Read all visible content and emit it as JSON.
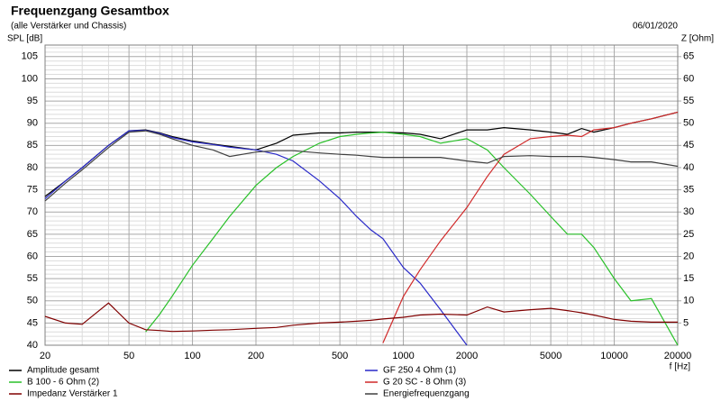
{
  "chart_data": {
    "type": "line",
    "title": "Frequenzgang Gesamtbox",
    "subtitle": "(alle Verstärker und Chassis)",
    "date": "06/01/2020",
    "ylabel": "SPL [dB]",
    "y2label": "Z [Ohm]",
    "xlabel": "f [Hz]",
    "xscale": "log",
    "grid": true,
    "legend": "bottom",
    "xlim": [
      20,
      20000
    ],
    "xticks": [
      20,
      50,
      100,
      200,
      500,
      1000,
      2000,
      5000,
      10000,
      20000
    ],
    "xminorticks": [
      30,
      40,
      60,
      70,
      80,
      90,
      300,
      400,
      600,
      700,
      800,
      900,
      3000,
      4000,
      6000,
      7000,
      8000,
      9000
    ],
    "ylim": [
      40,
      107.6
    ],
    "yticks": [
      40,
      45,
      50,
      55,
      60,
      65,
      70,
      75,
      80,
      85,
      90,
      95,
      100,
      105
    ],
    "yminorticks": [
      41,
      42,
      43,
      44,
      46,
      47,
      48,
      49,
      51,
      52,
      53,
      54,
      56,
      57,
      58,
      59,
      61,
      62,
      63,
      64,
      66,
      67,
      68,
      69,
      71,
      72,
      73,
      74,
      76,
      77,
      78,
      79,
      81,
      82,
      83,
      84,
      86,
      87,
      88,
      89,
      91,
      92,
      93,
      94,
      96,
      97,
      98,
      99,
      101,
      102,
      103,
      104,
      106,
      107
    ],
    "y2lim": [
      0,
      67.6
    ],
    "y2ticks": [
      5,
      10,
      15,
      20,
      25,
      30,
      35,
      40,
      45,
      50,
      55,
      60,
      65
    ],
    "x": [
      20,
      25,
      30,
      40,
      50,
      60,
      70,
      80,
      100,
      125,
      150,
      200,
      250,
      300,
      400,
      500,
      600,
      700,
      800,
      1000,
      1200,
      1500,
      2000,
      2500,
      3000,
      4000,
      5000,
      6000,
      7000,
      8000,
      10000,
      12000,
      15000,
      20000
    ],
    "series": [
      {
        "name": "Amplitude gesamt",
        "color": "#000000",
        "values": [
          73.5,
          77,
          80,
          85,
          88.3,
          88.5,
          87.8,
          87,
          86,
          85.3,
          84.8,
          84,
          85.5,
          87.3,
          87.8,
          87.8,
          88,
          88,
          88,
          87.8,
          87.5,
          86.5,
          88.5,
          88.5,
          89,
          88.5,
          88,
          87.5,
          88.8,
          88,
          89,
          90,
          91,
          92.5
        ]
      },
      {
        "name": "GF 250 4 Ohm (1)",
        "color": "#2828c8",
        "values": [
          73,
          77,
          80,
          85,
          88.3,
          88.4,
          87.7,
          86.8,
          85.8,
          85.2,
          84.6,
          84,
          83,
          81.5,
          77,
          73,
          69,
          66,
          64,
          57.5,
          54,
          48,
          40,
          null,
          null,
          null,
          null,
          null,
          null,
          null,
          null,
          null,
          null,
          null
        ]
      },
      {
        "name": "B 100 - 6 Ohm (2)",
        "color": "#28c028",
        "values": [
          null,
          null,
          null,
          null,
          null,
          43,
          47,
          51,
          58,
          64,
          69,
          76,
          80,
          82.5,
          85.5,
          87,
          87.5,
          87.8,
          88,
          87.5,
          87,
          85.5,
          86.5,
          84,
          80,
          74,
          69,
          65,
          65,
          62,
          55,
          50,
          50.5,
          40
        ]
      },
      {
        "name": "G 20 SC - 8 Ohm (3)",
        "color": "#d02828",
        "values": [
          null,
          null,
          null,
          null,
          null,
          null,
          null,
          null,
          null,
          null,
          null,
          null,
          null,
          null,
          null,
          null,
          null,
          null,
          40.5,
          51,
          57,
          63.5,
          71,
          78,
          83,
          86.5,
          87,
          87.3,
          87,
          88.5,
          89,
          90,
          91,
          92.5
        ]
      },
      {
        "name": "Impedanz Verstärker 1",
        "color": "#800000",
        "axis": "y2",
        "values": [
          6.5,
          5,
          4.7,
          9.5,
          5,
          3.5,
          3.3,
          3.1,
          3.2,
          3.4,
          3.5,
          3.8,
          4,
          4.5,
          5,
          5.2,
          5.4,
          5.6,
          5.9,
          6.3,
          6.8,
          7,
          6.8,
          8.6,
          7.5,
          8,
          8.3,
          7.8,
          7.3,
          6.8,
          5.8,
          5.4,
          5.2,
          5.2
        ]
      },
      {
        "name": "Energiefrequenzgang",
        "color": "#404040",
        "values": [
          72.5,
          76.5,
          79.5,
          84.5,
          88,
          88.3,
          87.5,
          86.5,
          85,
          84,
          82.5,
          83.5,
          83.8,
          83.8,
          83.3,
          83,
          82.8,
          82.5,
          82.3,
          82.3,
          82.3,
          82.3,
          81.5,
          81,
          82.5,
          82.7,
          82.5,
          82.5,
          82.5,
          82.3,
          81.8,
          81.3,
          81.3,
          80.3
        ]
      }
    ]
  }
}
